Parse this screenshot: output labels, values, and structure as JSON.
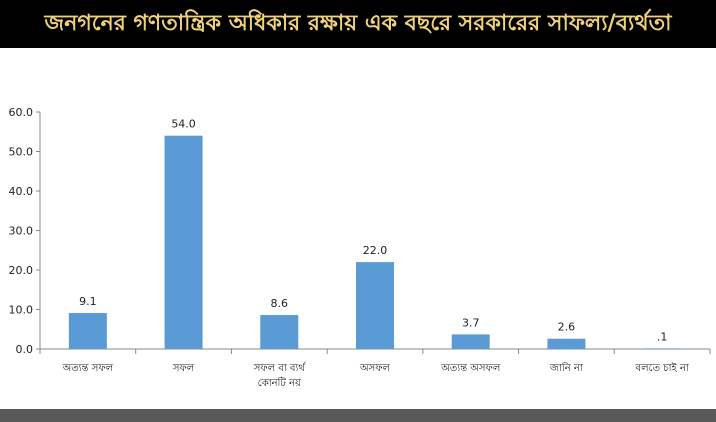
{
  "header": {
    "title": "জনগনের গণতান্ত্রিক অধিকার রক্ষায় এক বছরে সরকারের সাফল্য/ব্যর্থতা"
  },
  "colors": {
    "bar": "#5b9bd5",
    "title_bg": "#000000",
    "title_text": "#f0d27a",
    "footer": "#595959"
  },
  "chart_data": {
    "type": "bar",
    "title": "জনগনের গণতান্ত্রিক অধিকার রক্ষায় এক বছরে সরকারের সাফল্য/ব্যর্থতা",
    "categories": [
      [
        "অত্যন্ত সফল"
      ],
      [
        "সফল"
      ],
      [
        "সফল বা ব্যর্থ",
        "কোনটি নয়"
      ],
      [
        "অসফল"
      ],
      [
        "অত্যন্ত অসফল"
      ],
      [
        "জানি না"
      ],
      [
        "বলতে চাই না"
      ]
    ],
    "values": [
      9.1,
      54.0,
      8.6,
      22.0,
      3.7,
      2.6,
      0.1
    ],
    "value_labels": [
      "9.1",
      "54.0",
      "8.6",
      "22.0",
      "3.7",
      "2.6",
      ".1"
    ],
    "ylim": [
      0,
      60
    ],
    "yticks": [
      0,
      10,
      20,
      30,
      40,
      50,
      60
    ],
    "ytick_labels": [
      "0.0",
      "10.0",
      "20.0",
      "30.0",
      "40.0",
      "50.0",
      "60.0"
    ],
    "xlabel": "",
    "ylabel": "",
    "grid": false,
    "legend": "none"
  }
}
